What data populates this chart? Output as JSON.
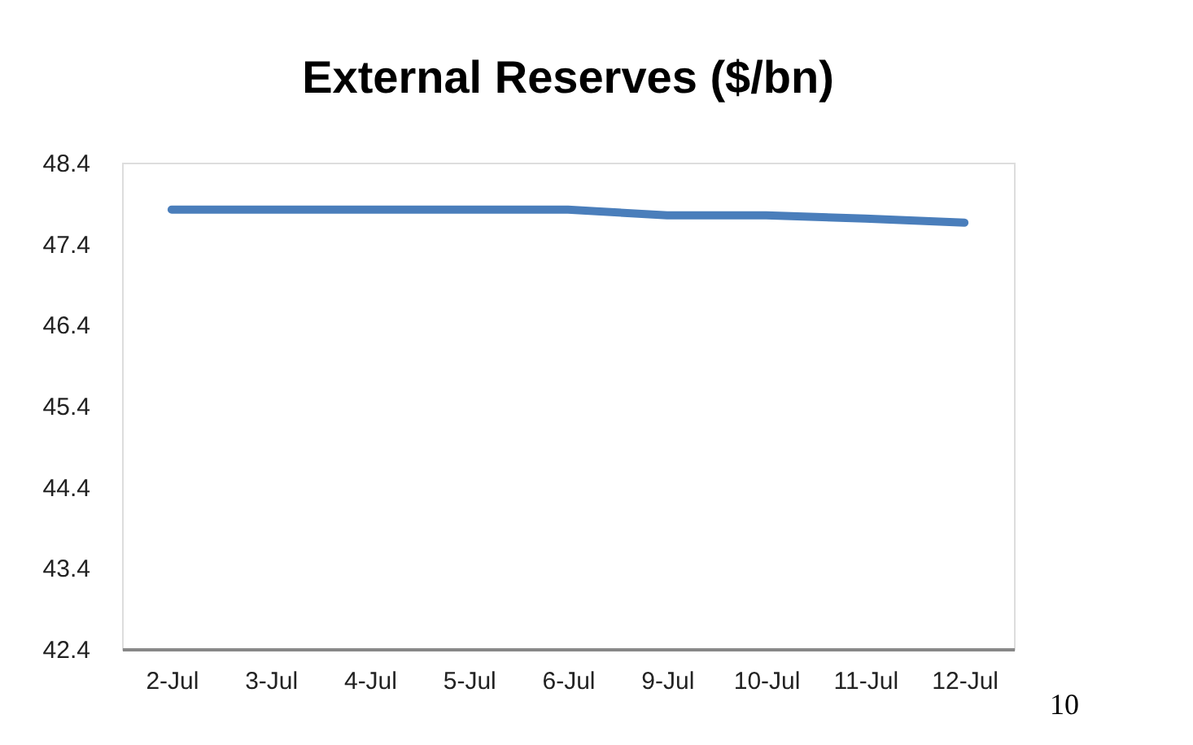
{
  "chart_data": {
    "type": "line",
    "title": "External Reserves ($/bn)",
    "categories": [
      "2-Jul",
      "3-Jul",
      "4-Jul",
      "5-Jul",
      "6-Jul",
      "9-Jul",
      "10-Jul",
      "11-Jul",
      "12-Jul"
    ],
    "series": [
      {
        "color": "#4a7ebb",
        "values": [
          47.82,
          47.82,
          47.82,
          47.82,
          47.82,
          47.75,
          47.75,
          47.71,
          47.66
        ]
      }
    ],
    "ylim": [
      42.4,
      48.4
    ],
    "yticks": [
      42.4,
      43.4,
      44.4,
      45.4,
      46.4,
      47.4,
      48.4
    ],
    "grid": false,
    "marker": "none",
    "line_style": "solid",
    "annotations": [
      "10"
    ]
  }
}
